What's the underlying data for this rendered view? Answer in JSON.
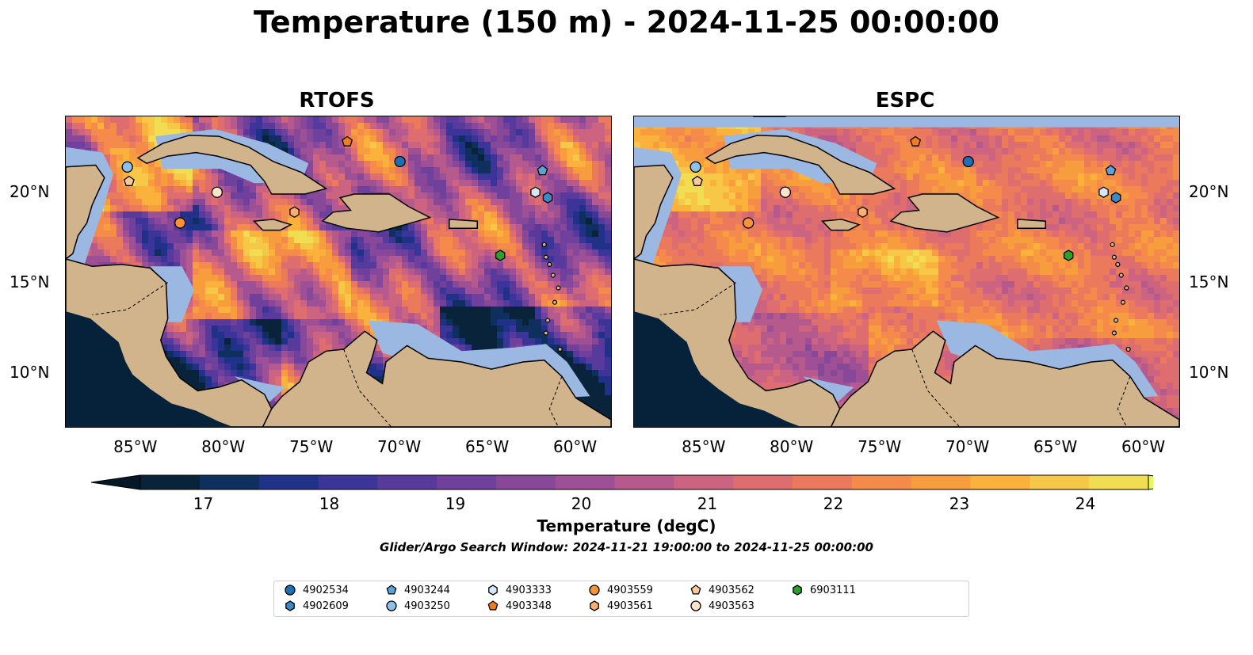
{
  "title": "Temperature (150 m) - 2024-11-25 00:00:00",
  "panels": [
    {
      "title": "RTOFS"
    },
    {
      "title": "ESPC"
    }
  ],
  "axes": {
    "lon_ticks": [
      "85°W",
      "80°W",
      "75°W",
      "70°W",
      "65°W",
      "60°W"
    ],
    "lat_ticks": [
      "20°N",
      "15°N",
      "10°N"
    ]
  },
  "colorbar": {
    "label": "Temperature (degC)",
    "tick_labels": [
      "17",
      "18",
      "19",
      "20",
      "21",
      "22",
      "23",
      "24"
    ],
    "min": 16.5,
    "max": 24.5,
    "colors": [
      "#08233a",
      "#0f2f5e",
      "#1f3287",
      "#3b3499",
      "#573a9c",
      "#6f419c",
      "#87489a",
      "#9e5096",
      "#b65a8d",
      "#cc6380",
      "#dd6d6e",
      "#eb7a5c",
      "#f48b4a",
      "#f89d3d",
      "#fab23c",
      "#f7c848",
      "#f0dd52"
    ],
    "extend_low": "#041828",
    "extend_high": "#e6fb5a"
  },
  "search_window": "Glider/Argo Search Window: 2024-11-21 19:00:00 to 2024-11-25 00:00:00",
  "colors": {
    "land": "#d2b48c",
    "shallow_water": "#9bb8e3",
    "ocean_deep": "#06223a"
  },
  "legend": [
    {
      "id": "4902534",
      "marker": "circle",
      "color": "#1f6fb4"
    },
    {
      "id": "4902609",
      "marker": "hexagon",
      "color": "#3c8ac8"
    },
    {
      "id": "4903244",
      "marker": "pentagon",
      "color": "#5aa2d8"
    },
    {
      "id": "4903250",
      "marker": "circle",
      "color": "#8cc2ea"
    },
    {
      "id": "4903333",
      "marker": "hexagon",
      "color": "#d3e8f8"
    },
    {
      "id": "4903348",
      "marker": "pentagon",
      "color": "#f07e1a"
    },
    {
      "id": "4903559",
      "marker": "circle",
      "color": "#f7943a"
    },
    {
      "id": "4903561",
      "marker": "hexagon",
      "color": "#fbb070"
    },
    {
      "id": "4903562",
      "marker": "pentagon",
      "color": "#fcc89c"
    },
    {
      "id": "4903563",
      "marker": "circle",
      "color": "#fde2cc"
    },
    {
      "id": "6903111",
      "marker": "hexagon",
      "color": "#2ca02c"
    }
  ],
  "floats": [
    {
      "id": "4902534",
      "lon": -70.0,
      "lat": 21.7
    },
    {
      "id": "4902609",
      "lon": -61.6,
      "lat": 19.7
    },
    {
      "id": "4903244",
      "lon": -61.9,
      "lat": 21.2
    },
    {
      "id": "4903250",
      "lon": -85.5,
      "lat": 21.4
    },
    {
      "id": "4903333",
      "lon": -62.3,
      "lat": 20.0
    },
    {
      "id": "4903348",
      "lon": -73.0,
      "lat": 22.8
    },
    {
      "id": "4903559",
      "lon": -82.5,
      "lat": 18.3
    },
    {
      "id": "4903561",
      "lon": -76.0,
      "lat": 18.9
    },
    {
      "id": "4903562",
      "lon": -85.4,
      "lat": 20.6
    },
    {
      "id": "4903563",
      "lon": -80.4,
      "lat": 20.0
    },
    {
      "id": "6903111",
      "lon": -64.3,
      "lat": 16.5
    }
  ]
}
